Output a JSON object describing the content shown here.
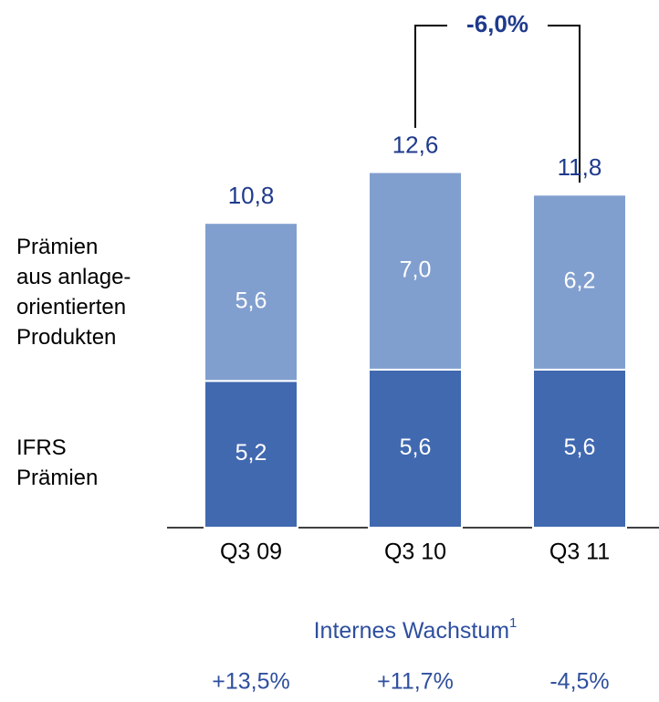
{
  "chart_data": {
    "type": "bar",
    "stacked": true,
    "categories": [
      "Q3 09",
      "Q3 10",
      "Q3 11"
    ],
    "series": [
      {
        "name": "IFRS\nPrämien",
        "color": "#4169b0",
        "values": [
          5.2,
          5.6,
          5.6
        ],
        "value_labels": [
          "5,2",
          "5,6",
          "5,6"
        ]
      },
      {
        "name": "Prämien\naus anlage-\norientierten\nProdukten",
        "color": "#819fce",
        "values": [
          5.6,
          7.0,
          6.2
        ],
        "value_labels": [
          "5,6",
          "7,0",
          "6,2"
        ]
      }
    ],
    "totals": [
      10.8,
      12.6,
      11.8
    ],
    "totals_labels": [
      "10,8",
      "12,6",
      "11,8"
    ],
    "annotation": "-6,0%",
    "ylim": [
      0,
      18.7
    ],
    "growth_title": "Internes Wachstum",
    "growth_title_footnote": "1",
    "growth_values": [
      13.5,
      11.7,
      -4.5
    ],
    "growth_labels": [
      "+13,5%",
      "+11,7%",
      "-4,5%"
    ]
  }
}
